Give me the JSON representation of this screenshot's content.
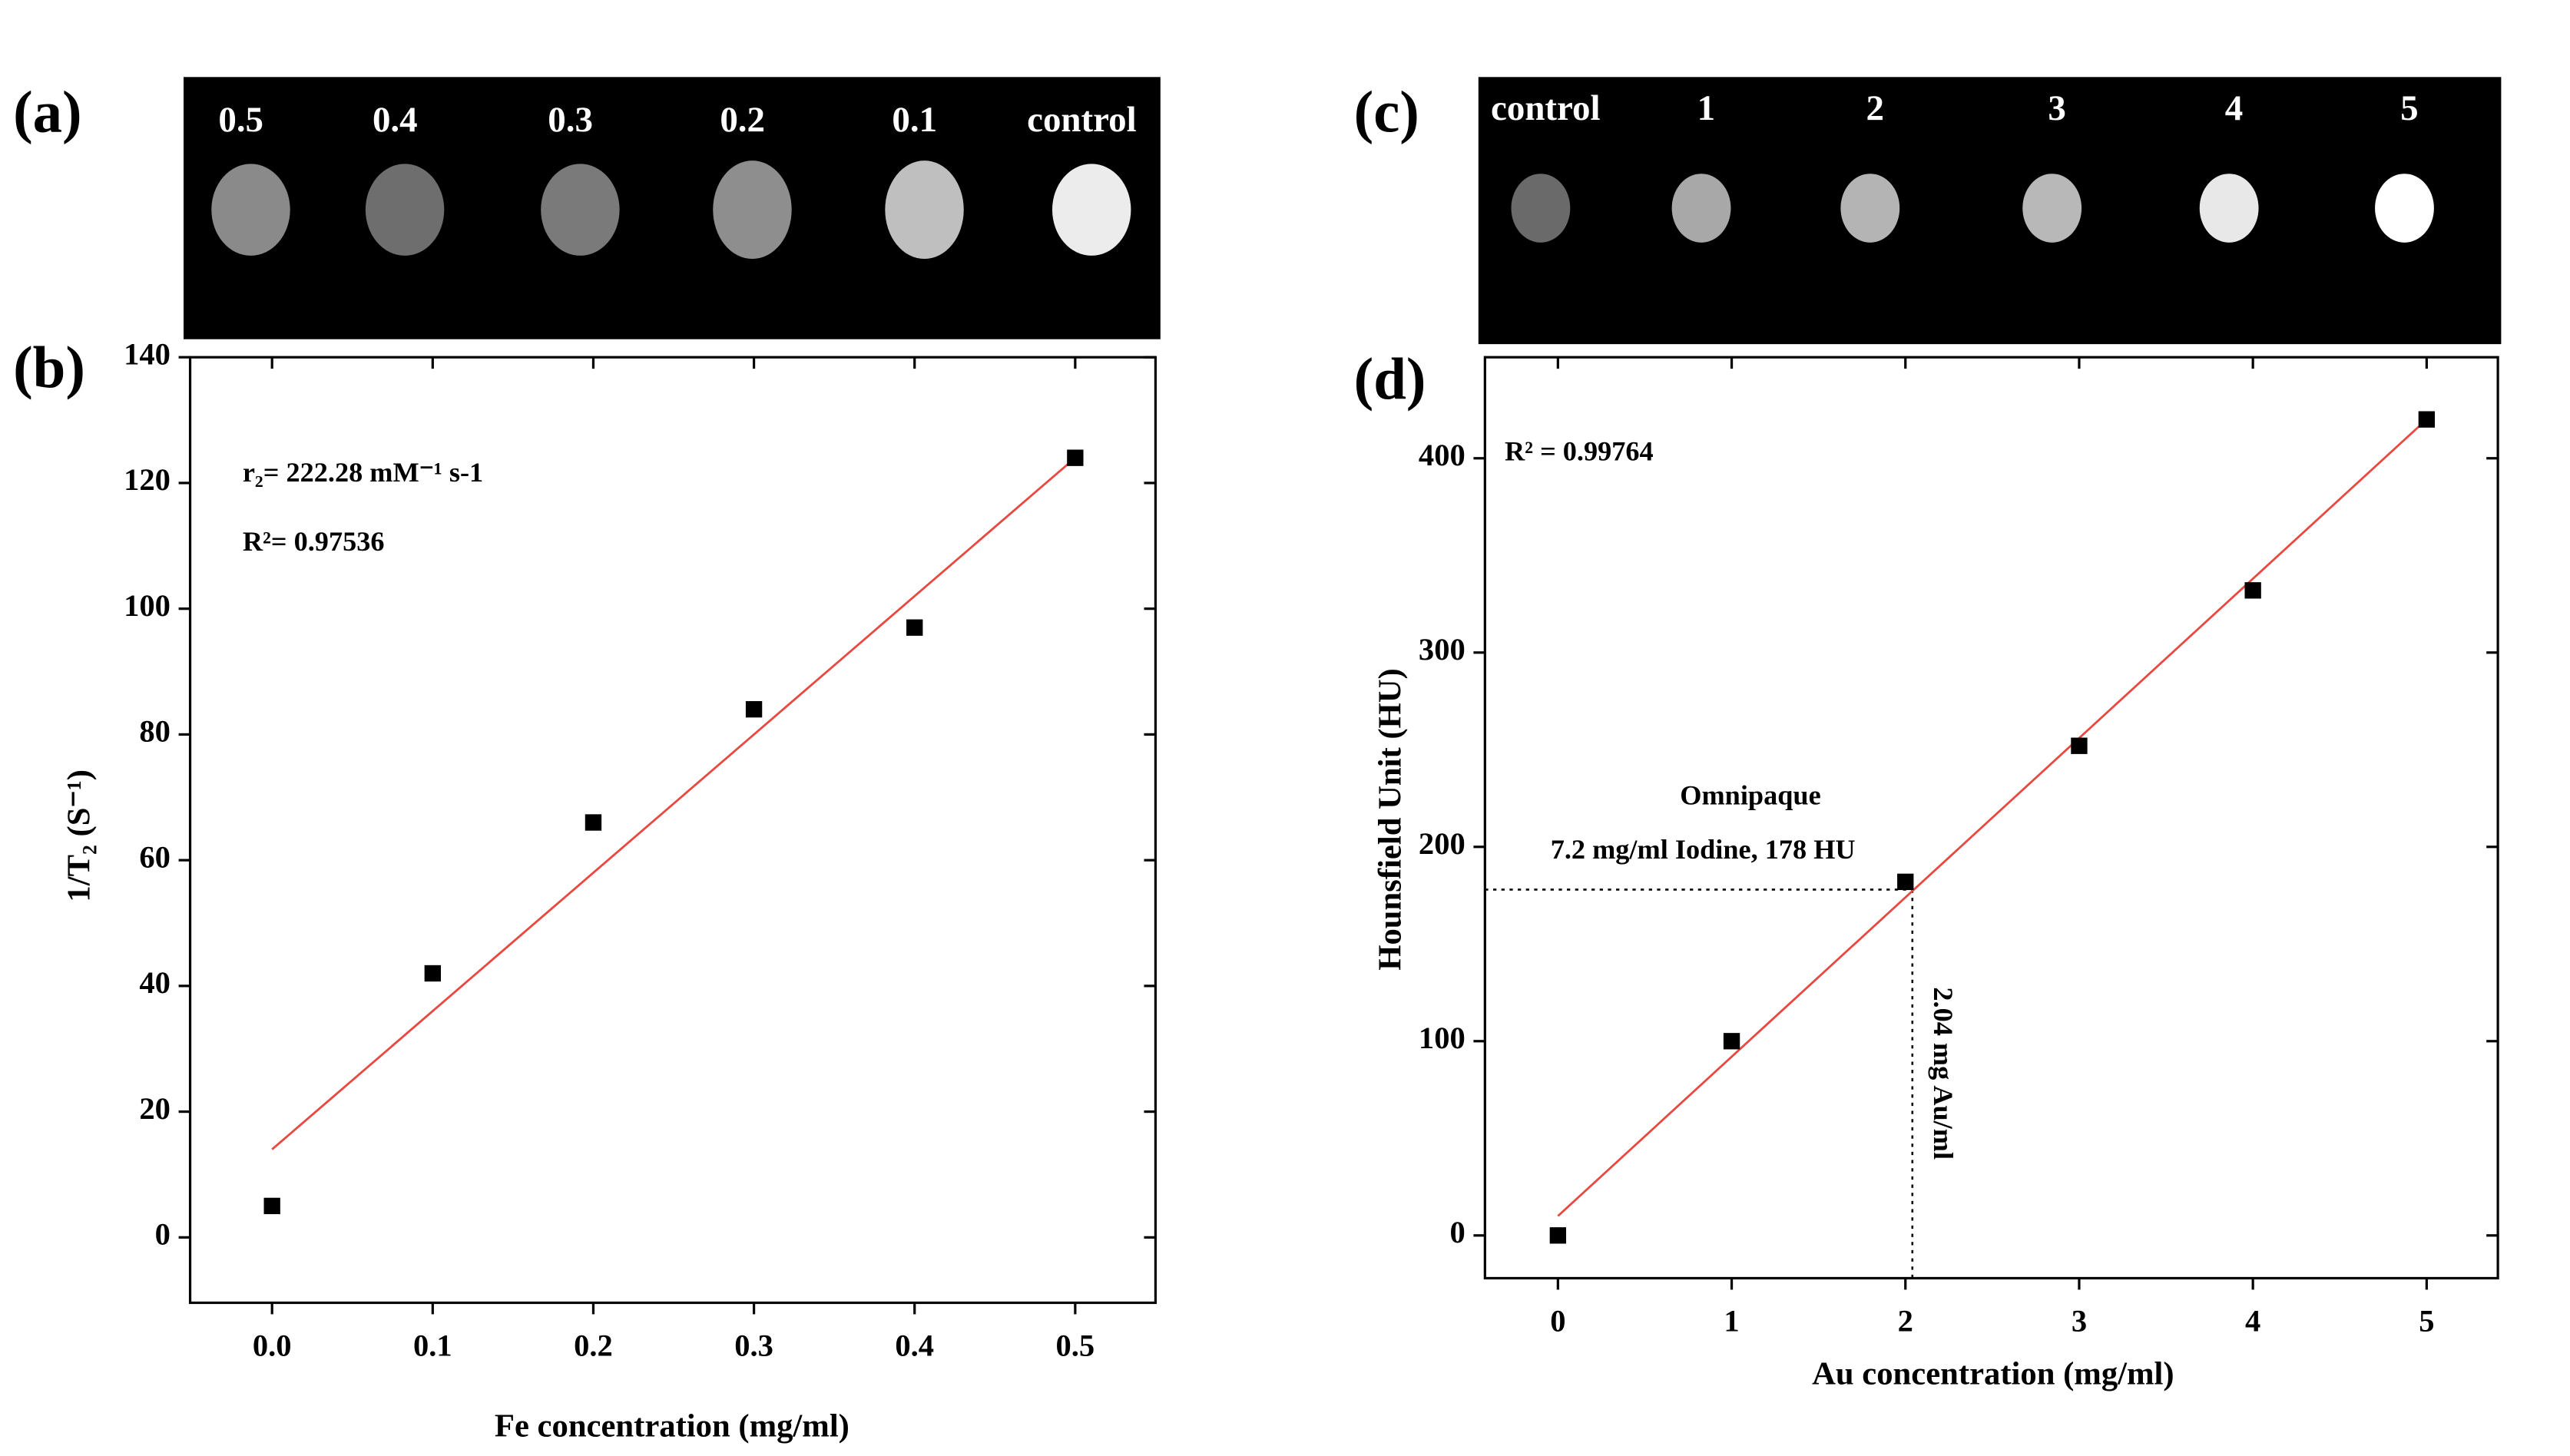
{
  "panels": [
    {
      "label": "(a)",
      "samples": [
        "0.5",
        "0.4",
        "0.3",
        "0.2",
        "0.1",
        "control"
      ]
    },
    {
      "label": "(c)",
      "samples": [
        "control",
        "1",
        "2",
        "3",
        "4",
        "5"
      ]
    }
  ],
  "chart_data": [
    {
      "type": "scatter",
      "panel_label": "(b)",
      "x_label": "Fe concentration (mg/ml)",
      "y_label": "1/T₂ (S⁻¹)",
      "x": [
        0,
        0.1,
        0.2,
        0.3,
        0.4,
        0.5
      ],
      "values": [
        5,
        42,
        66,
        84,
        97,
        124
      ],
      "color": "#000000",
      "fit": {
        "x": [
          0,
          0.5
        ],
        "y": [
          14,
          124
        ],
        "color": "#e8483f"
      },
      "xlim": [
        -0.051,
        0.55
      ],
      "ylim": [
        -10.4,
        140
      ],
      "xticks": [
        {
          "value": 0,
          "label": "0.0"
        },
        0.1,
        0.2,
        0.3,
        0.4,
        0.5
      ],
      "yticks": [
        0,
        20,
        40,
        60,
        80,
        100,
        120,
        140
      ],
      "annotations": [
        "r₂= 222.28 mM⁻¹ s-1",
        "R²= 0.97536"
      ]
    },
    {
      "type": "scatter",
      "panel_label": "(d)",
      "x_label": "Au concentration (mg/ml)",
      "y_label": "Hounsfield Unit (HU)",
      "x": [
        0,
        1,
        2,
        3,
        4,
        5
      ],
      "values": [
        0,
        100,
        182,
        252,
        332,
        420
      ],
      "color": "#000000",
      "fit": {
        "x": [
          0,
          5
        ],
        "y": [
          10,
          420
        ],
        "color": "#e8483f"
      },
      "reference": {
        "x": 2.04,
        "y": 178
      },
      "xlim": [
        -0.42,
        5.41
      ],
      "ylim": [
        -22,
        452
      ],
      "xticks": [
        0,
        1,
        2,
        3,
        4,
        5
      ],
      "yticks": [
        0,
        100,
        200,
        300,
        400
      ],
      "annotations": [
        "R² = 0.99764",
        "Omnipaque",
        "7.2 mg/ml Iodine, 178 HU",
        "2.04 mg Au/ml"
      ]
    }
  ]
}
